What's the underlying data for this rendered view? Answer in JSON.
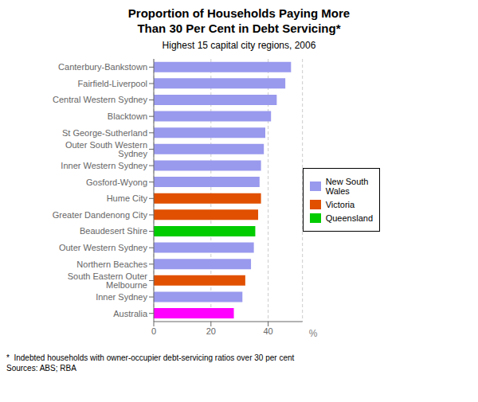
{
  "chart_data": {
    "type": "bar",
    "orientation": "horizontal",
    "stacked": true,
    "grid": true,
    "legend": "right",
    "title": "Proportion of Households Paying More\nThan 30 Per Cent in Debt Servicing*",
    "subtitle": "Highest 15 capital city regions, 2006",
    "footnote": "*  Indebted households with owner-occupier debt-servicing ratios over 30 per cent\nSources: ABS; RBA",
    "xlabel": "%",
    "categories": [
      "Canterbury-Bankstown",
      "Fairfield-Liverpool",
      "Central Western Sydney",
      "Blacktown",
      "St George-Sutherland",
      "Outer South Western Sydney",
      "Inner Western Sydney",
      "Gosford-Wyong",
      "Hume City",
      "Greater Dandenong City",
      "Beaudesert Shire",
      "Outer Western Sydney",
      "Northern Beaches",
      "South Eastern Outer Melbourne",
      "Inner Sydney",
      "Australia"
    ],
    "series": [
      {
        "name": "New South\nWales",
        "color": "#9999ee",
        "values": [
          48,
          46,
          43,
          41,
          39,
          38.5,
          37.5,
          37,
          null,
          null,
          null,
          35,
          34,
          null,
          31,
          null
        ]
      },
      {
        "name": "Victoria",
        "color": "#e05000",
        "values": [
          null,
          null,
          null,
          null,
          null,
          null,
          null,
          null,
          37.5,
          36.5,
          null,
          null,
          null,
          32,
          null,
          null
        ]
      },
      {
        "name": "Queensland",
        "color": "#00cc00",
        "values": [
          null,
          null,
          null,
          null,
          null,
          null,
          null,
          null,
          null,
          null,
          35.5,
          null,
          null,
          null,
          null,
          null
        ]
      },
      {
        "color": "#ff00ff",
        "values": [
          null,
          null,
          null,
          null,
          null,
          null,
          null,
          null,
          null,
          null,
          null,
          null,
          null,
          null,
          null,
          28
        ]
      }
    ],
    "xlim": [
      0,
      52
    ],
    "xticks": [
      0,
      20,
      40
    ]
  }
}
